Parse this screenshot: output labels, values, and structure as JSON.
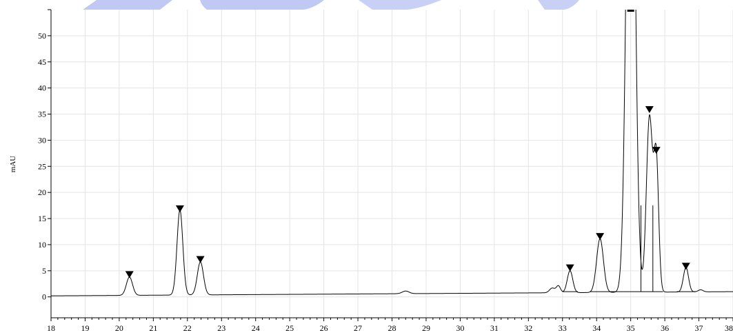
{
  "chart_data": {
    "type": "line",
    "title": "",
    "xlabel": "",
    "ylabel": "mAU",
    "xlim": [
      18,
      38
    ],
    "ylim": [
      -4,
      55
    ],
    "x_ticks": [
      "18",
      "19",
      "20",
      "21",
      "22",
      "23",
      "24",
      "25",
      "26",
      "27",
      "28",
      "29",
      "30",
      "31",
      "32",
      "33",
      "34",
      "35",
      "36",
      "37",
      "38"
    ],
    "y_ticks": [
      "0",
      "5",
      "10",
      "15",
      "20",
      "25",
      "30",
      "35",
      "40",
      "45",
      "50"
    ],
    "grid": true,
    "baseline_start": 0.2,
    "baseline_end": 1.0,
    "peaks": [
      {
        "rt": 20.3,
        "height": 3.5,
        "width": 0.09
      },
      {
        "rt": 21.78,
        "height": 16.3,
        "width": 0.085
      },
      {
        "rt": 22.38,
        "height": 6.3,
        "width": 0.09
      },
      {
        "rt": 28.4,
        "height": 0.5,
        "width": 0.1
      },
      {
        "rt": 32.7,
        "height": 0.9,
        "width": 0.08
      },
      {
        "rt": 32.88,
        "height": 1.3,
        "width": 0.06
      },
      {
        "rt": 33.22,
        "height": 4.2,
        "width": 0.08
      },
      {
        "rt": 34.1,
        "height": 10.3,
        "width": 0.1
      },
      {
        "rt": 35.0,
        "height": 120,
        "width": 0.12
      },
      {
        "rt": 35.55,
        "height": 33.5,
        "width": 0.09
      },
      {
        "rt": 35.75,
        "height": 25,
        "width": 0.07
      },
      {
        "rt": 36.62,
        "height": 4.7,
        "width": 0.075
      },
      {
        "rt": 37.05,
        "height": 0.4,
        "width": 0.07
      }
    ],
    "peak_markers": [
      {
        "rt": 20.3,
        "y": 3.6
      },
      {
        "rt": 21.78,
        "y": 16.2
      },
      {
        "rt": 22.38,
        "y": 6.5
      },
      {
        "rt": 33.22,
        "y": 4.9
      },
      {
        "rt": 34.1,
        "y": 10.9
      },
      {
        "rt": 35.55,
        "y": 35.2
      },
      {
        "rt": 35.75,
        "y": 27.4
      },
      {
        "rt": 36.62,
        "y": 5.2
      }
    ],
    "drop_lines": [
      35.3,
      35.65
    ],
    "integration_baselines": [
      {
        "x1": 33.0,
        "y1": 1.0,
        "x2": 33.45,
        "y2": 1.0
      },
      {
        "x1": 33.8,
        "y1": 1.0,
        "x2": 35.3,
        "y2": 1.0
      },
      {
        "x1": 35.3,
        "y1": 1.0,
        "x2": 35.95,
        "y2": 1.0
      },
      {
        "x1": 36.35,
        "y1": 1.0,
        "x2": 36.9,
        "y2": 1.0
      }
    ],
    "watermark_color": "#4b63e0"
  }
}
